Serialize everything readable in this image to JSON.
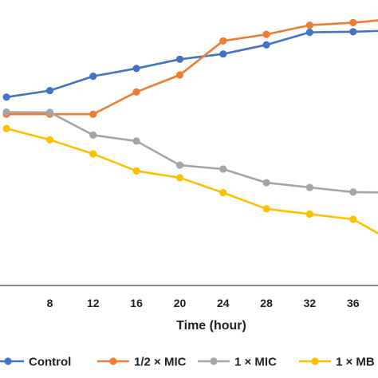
{
  "chart_data": {
    "type": "line",
    "title": "",
    "xlabel": "Time (hour)",
    "ylabel": "",
    "x": [
      4,
      8,
      12,
      16,
      20,
      24,
      28,
      32,
      36,
      40
    ],
    "x_ticks": [
      "8",
      "12",
      "16",
      "20",
      "24",
      "28",
      "32",
      "36"
    ],
    "xlim": [
      3.4,
      38.3
    ],
    "ylim": [
      0,
      100
    ],
    "grid": false,
    "legend": "bottom",
    "series": [
      {
        "name": "Control",
        "color": "#4472C4",
        "values": [
          72,
          74.5,
          80,
          83,
          86.5,
          88.5,
          92,
          96.8,
          97,
          97.5
        ]
      },
      {
        "name": "1/2 × MIC",
        "color": "#ED7D31",
        "values": [
          65.5,
          65.5,
          65.5,
          74,
          80.5,
          93.5,
          96,
          99.5,
          100.5,
          102
        ]
      },
      {
        "name": "1 × MIC",
        "color": "#A5A5A5",
        "values": [
          66.3,
          66.2,
          57.5,
          55.2,
          46,
          44.5,
          39.3,
          37.5,
          35.7,
          35.5
        ]
      },
      {
        "name": "1 × MB",
        "color": "#FFC000",
        "values": [
          60,
          55.7,
          50.3,
          43.8,
          41.2,
          35.5,
          29.3,
          27.3,
          25.3,
          16
        ]
      }
    ]
  }
}
